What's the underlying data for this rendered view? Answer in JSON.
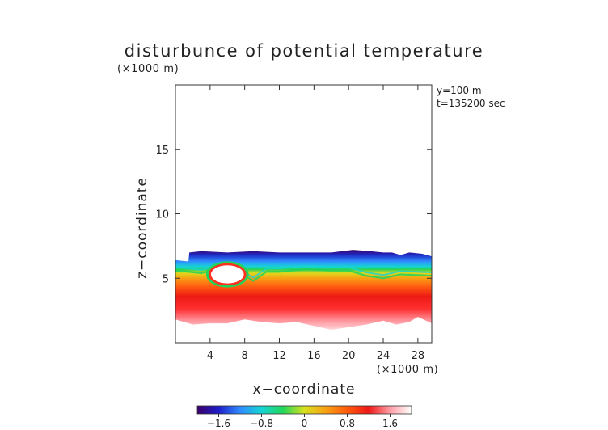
{
  "chart_data": {
    "type": "heatmap",
    "title": "disturbunce of potential temperature",
    "subtitle": "(×1000 m)",
    "xlabel": "x−coordinate",
    "ylabel": "z−coordinate",
    "x_unit": "(×1000 m)",
    "annotations": [
      "y=100 m",
      "t=135200 sec"
    ],
    "xlim": [
      0,
      29.6
    ],
    "ylim": [
      0,
      20
    ],
    "x_ticks": [
      4,
      8,
      12,
      16,
      20,
      24,
      28
    ],
    "x_tick_labels": [
      "4",
      "8",
      "12",
      "16",
      "20",
      "24",
      "28"
    ],
    "y_ticks": [
      5,
      10,
      15
    ],
    "y_tick_labels": [
      "5",
      "10",
      "15"
    ],
    "colorbar": {
      "range": [
        -2.0,
        2.0
      ],
      "ticks": [
        -1.6,
        -0.8,
        0,
        0.8,
        1.6
      ],
      "tick_labels": [
        "−1.6",
        "−0.8",
        "0",
        "0.8",
        "1.6"
      ],
      "colormap": [
        "#3a006a",
        "#1e1ec8",
        "#2f8cff",
        "#16d4d4",
        "#22d75a",
        "#d8e01e",
        "#f8a014",
        "#ff5a0c",
        "#ee1818",
        "#ff9ea6",
        "#ffffff"
      ]
    },
    "field": {
      "description_note": "",
      "layer_top": [
        [
          0.0,
          6.4
        ],
        [
          1.5,
          6.3
        ],
        [
          1.6,
          7.0
        ],
        [
          3.0,
          7.1
        ],
        [
          6.0,
          7.0
        ],
        [
          9.0,
          7.1
        ],
        [
          12.0,
          7.0
        ],
        [
          15.0,
          7.0
        ],
        [
          18.0,
          7.0
        ],
        [
          20.5,
          7.2
        ],
        [
          22.5,
          7.1
        ],
        [
          24.0,
          7.0
        ],
        [
          25.0,
          7.0
        ],
        [
          26.0,
          6.8
        ],
        [
          27.0,
          7.0
        ],
        [
          28.5,
          6.9
        ],
        [
          29.6,
          6.7
        ]
      ],
      "layer_bottom": [
        [
          0.0,
          1.8
        ],
        [
          2.0,
          1.4
        ],
        [
          4.0,
          1.5
        ],
        [
          6.0,
          1.5
        ],
        [
          8.0,
          1.8
        ],
        [
          10.0,
          1.6
        ],
        [
          12.0,
          1.5
        ],
        [
          14.0,
          1.6
        ],
        [
          16.0,
          1.3
        ],
        [
          18.0,
          1.0
        ],
        [
          20.0,
          1.2
        ],
        [
          22.0,
          1.4
        ],
        [
          24.0,
          1.7
        ],
        [
          25.5,
          1.4
        ],
        [
          27.0,
          1.6
        ],
        [
          28.0,
          2.0
        ],
        [
          29.6,
          1.5
        ]
      ],
      "zero_line": [
        [
          0.0,
          5.6
        ],
        [
          3.0,
          5.4
        ],
        [
          5.0,
          5.7
        ],
        [
          7.0,
          5.6
        ],
        [
          9.0,
          4.8
        ],
        [
          10.5,
          5.5
        ],
        [
          12.0,
          5.5
        ],
        [
          15.0,
          5.7
        ],
        [
          18.0,
          5.6
        ],
        [
          20.0,
          5.6
        ],
        [
          22.0,
          5.2
        ],
        [
          24.0,
          5.0
        ],
        [
          26.0,
          5.3
        ],
        [
          29.6,
          5.2
        ]
      ],
      "warm_bubble": {
        "x": 6.0,
        "z": 5.3,
        "rx": 1.9,
        "rz": 0.7
      }
    }
  }
}
